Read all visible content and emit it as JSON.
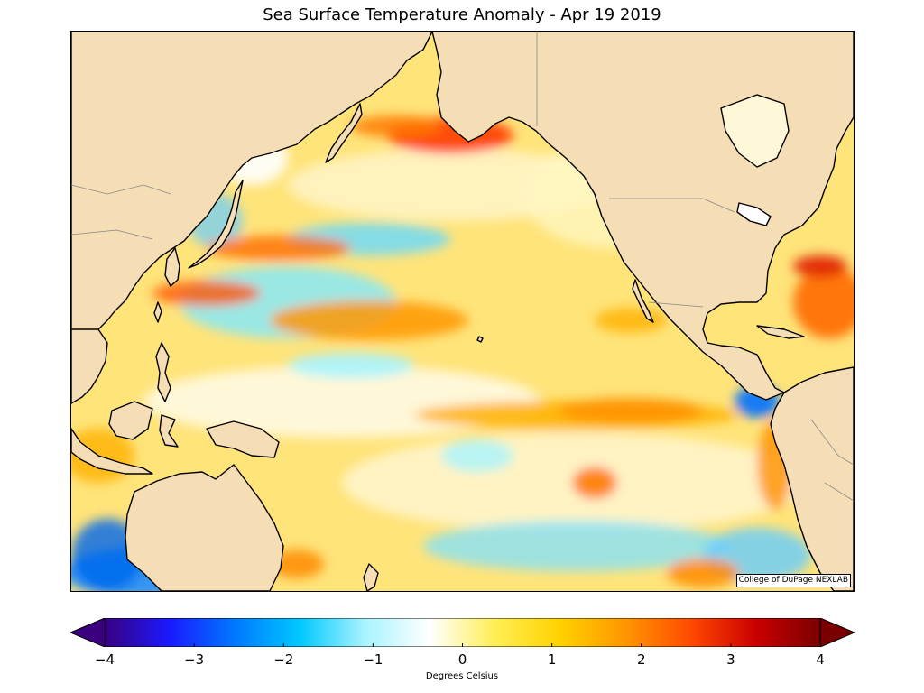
{
  "title": "Sea Surface Temperature Anomaly - Apr 19 2019",
  "credit": "College of DuPage NEXLAB",
  "colorbar": {
    "label": "Degrees Celsius",
    "min": -4,
    "max": 4,
    "ticks": [
      "−4",
      "−3",
      "−2",
      "−1",
      "0",
      "1",
      "2",
      "3",
      "4"
    ],
    "extend": "both",
    "colors": [
      "#3a007f",
      "#1a1aff",
      "#0078ff",
      "#00c8ff",
      "#a8f4ff",
      "#ffffff",
      "#ffee55",
      "#ffd200",
      "#ff9600",
      "#ff4a00",
      "#cc0000",
      "#7a0000"
    ]
  },
  "map": {
    "ocean_base": "#ffee88",
    "land_color": "#f5ddb5",
    "coast_color": "#000000",
    "border_color": "#888888"
  }
}
